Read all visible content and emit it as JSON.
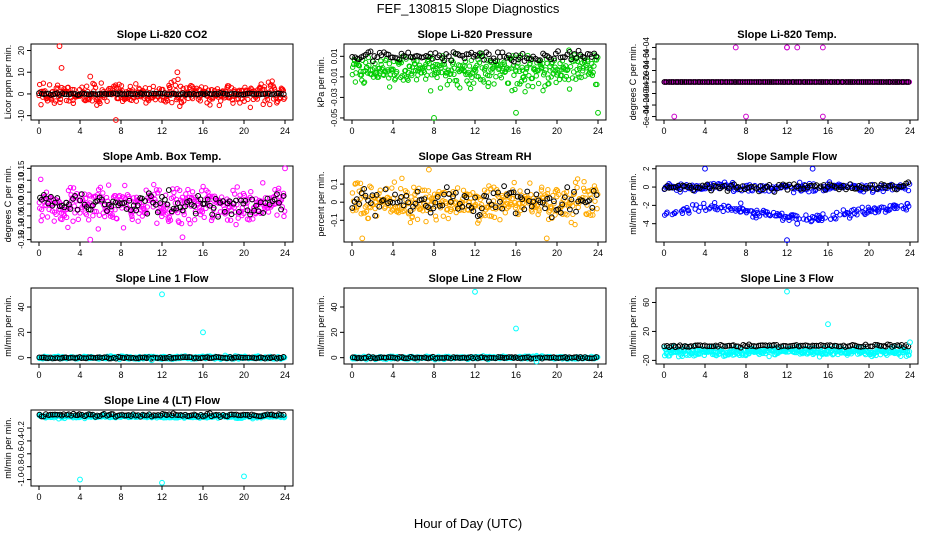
{
  "title": "FEF_130815 Slope Diagnostics",
  "x_title": "Hour of Day (UTC)",
  "chart_data": [
    {
      "type": "scatter",
      "title": "Slope Li-820 CO2",
      "ylabel": "Licor ppm per min.",
      "xlim": [
        0,
        24
      ],
      "xticks": [
        0,
        4,
        8,
        12,
        16,
        20,
        24
      ],
      "ylim": [
        -12,
        23
      ],
      "yticks": [
        -10,
        0,
        10,
        20
      ],
      "ytick_labels": [
        "-10",
        "0",
        "10",
        "20"
      ],
      "colors": {
        "primary": "#ff0000",
        "overlay": "#000000"
      },
      "spread": 4,
      "base_offset": 0,
      "outliers": [
        [
          2,
          22
        ],
        [
          7.5,
          -12
        ],
        [
          13.5,
          10
        ],
        [
          2.2,
          12
        ],
        [
          5,
          8
        ]
      ],
      "overlay_spread": 0.3,
      "overlay_base": 0
    },
    {
      "type": "scatter",
      "title": "Slope Li-820 Pressure",
      "ylabel": "kPa per min.",
      "xlim": [
        0,
        24
      ],
      "xticks": [
        0,
        4,
        8,
        12,
        16,
        20,
        24
      ],
      "ylim": [
        -0.052,
        0.022
      ],
      "yticks": [
        -0.05,
        -0.03,
        -0.01,
        0.01
      ],
      "ytick_labels": [
        "-0.05",
        "-0.03",
        "-0.01",
        "0.01"
      ],
      "colors": {
        "primary": "#00cc00",
        "overlay": "#000000"
      },
      "spread": 0.008,
      "base_offset": 0.0,
      "outliers": [
        [
          8,
          -0.05
        ],
        [
          16,
          -0.045
        ],
        [
          24,
          -0.045
        ]
      ],
      "overlay_spread": 0.004,
      "overlay_base": 0.01
    },
    {
      "type": "scatter",
      "title": "Slope Li-820 Temp.",
      "ylabel": "degrees C per min.",
      "xlim": [
        0,
        24
      ],
      "xticks": [
        0,
        4,
        8,
        12,
        16,
        20,
        24
      ],
      "ylim": [
        -0.00066,
        0.00066
      ],
      "yticks": [
        -0.0006,
        -0.0004,
        -0.0002,
        0,
        0.0002,
        0.0004,
        0.0006
      ],
      "ytick_labels": [
        "-6e-04",
        "-4e-04",
        "-2e-04",
        "0e+00",
        "2e-04",
        "4e-04",
        "6e-04"
      ],
      "colors": {
        "primary": "#cc00cc",
        "overlay": "#000000"
      },
      "spread": 0,
      "base_offset": 0,
      "outliers": [
        [
          7,
          0.0006
        ],
        [
          12,
          0.0006
        ],
        [
          13,
          0.0006
        ],
        [
          1,
          -0.0006
        ],
        [
          8,
          -0.0006
        ],
        [
          15.5,
          -0.0006
        ],
        [
          12,
          0.0006
        ],
        [
          15.5,
          0.0006
        ]
      ],
      "overlay_spread": 0,
      "overlay_base": 0
    },
    {
      "type": "scatter",
      "title": "Slope Amb. Box Temp.",
      "ylabel": "degrees C per min.",
      "xlim": [
        0,
        24
      ],
      "xticks": [
        0,
        4,
        8,
        12,
        16,
        20,
        24
      ],
      "ylim": [
        -0.16,
        0.16
      ],
      "yticks": [
        -0.15,
        -0.1,
        -0.05,
        0,
        0.05,
        0.1,
        0.15
      ],
      "ytick_labels": [
        "-0.15",
        "-0.10",
        "-0.05",
        "0.00",
        "0.05",
        "0.10",
        "0.15"
      ],
      "colors": {
        "primary": "#ff00ff",
        "overlay": "#000000"
      },
      "spread": 0.06,
      "base_offset": 0,
      "outliers": [
        [
          5,
          -0.15
        ],
        [
          14,
          -0.14
        ],
        [
          24,
          0.15
        ]
      ],
      "overlay_spread": 0.04,
      "overlay_base": 0
    },
    {
      "type": "scatter",
      "title": "Slope Gas Stream RH",
      "ylabel": "percent per min.",
      "xlim": [
        0,
        24
      ],
      "xticks": [
        0,
        4,
        8,
        12,
        16,
        20,
        24
      ],
      "ylim": [
        -0.22,
        0.2
      ],
      "yticks": [
        -0.1,
        0,
        0.1
      ],
      "ytick_labels": [
        "-0.1",
        "0",
        "0.1"
      ],
      "colors": {
        "primary": "#ffaa00",
        "overlay": "#000000"
      },
      "spread": 0.08,
      "base_offset": 0,
      "outliers": [
        [
          1,
          -0.2
        ],
        [
          19,
          -0.2
        ],
        [
          7.5,
          0.18
        ]
      ],
      "overlay_spread": 0.06,
      "overlay_base": 0
    },
    {
      "type": "scatter",
      "title": "Slope Sample Flow",
      "ylabel": "ml/min per min.",
      "xlim": [
        0,
        24
      ],
      "xticks": [
        0,
        4,
        8,
        12,
        16,
        20,
        24
      ],
      "ylim": [
        -6,
        2.3
      ],
      "yticks": [
        -4,
        -2,
        0,
        2
      ],
      "ytick_labels": [
        "-4",
        "-2",
        "0",
        "2"
      ],
      "colors": {
        "primary": "#0000ff",
        "overlay": "#000000"
      },
      "spread": 0.5,
      "base_offset": 0,
      "outliers": [
        [
          12,
          -5.8
        ],
        [
          13,
          -4
        ],
        [
          14.5,
          2
        ],
        [
          4,
          2
        ]
      ],
      "overlay_spread": 0.3,
      "overlay_base": 0
    },
    {
      "type": "scatter",
      "title": "Slope Line 1 Flow",
      "ylabel": "ml/min per min.",
      "xlim": [
        0,
        24
      ],
      "xticks": [
        0,
        4,
        8,
        12,
        16,
        20,
        24
      ],
      "ylim": [
        -5,
        55
      ],
      "yticks": [
        0,
        20,
        40
      ],
      "ytick_labels": [
        "0",
        "20",
        "40"
      ],
      "colors": {
        "primary": "#00ffff",
        "overlay": "#000000"
      },
      "spread": 1,
      "base_offset": 0,
      "outliers": [
        [
          12,
          50
        ],
        [
          16,
          20
        ],
        [
          11,
          -2
        ]
      ],
      "overlay_spread": 0.6,
      "overlay_base": 0
    },
    {
      "type": "scatter",
      "title": "Slope Line 2 Flow",
      "ylabel": "ml/min per min.",
      "xlim": [
        0,
        24
      ],
      "xticks": [
        0,
        4,
        8,
        12,
        16,
        20,
        24
      ],
      "ylim": [
        -5,
        55
      ],
      "yticks": [
        0,
        20,
        40
      ],
      "ytick_labels": [
        "0",
        "20",
        "40"
      ],
      "colors": {
        "primary": "#00ffff",
        "overlay": "#000000"
      },
      "spread": 1,
      "base_offset": 0,
      "outliers": [
        [
          12,
          52
        ],
        [
          16,
          23
        ],
        [
          18,
          -3
        ]
      ],
      "overlay_spread": 0.6,
      "overlay_base": 0
    },
    {
      "type": "scatter",
      "title": "Slope Line 3 Flow",
      "ylabel": "ml/min per min.",
      "xlim": [
        0,
        24
      ],
      "xticks": [
        0,
        4,
        8,
        12,
        16,
        20,
        24
      ],
      "ylim": [
        -25,
        80
      ],
      "yticks": [
        -20,
        20,
        60
      ],
      "ytick_labels": [
        "-20",
        "20",
        "60"
      ],
      "colors": {
        "primary": "#00ffff",
        "overlay": "#000000"
      },
      "spread": 5,
      "base_offset": -8,
      "outliers": [
        [
          12,
          75
        ],
        [
          16,
          30
        ],
        [
          24,
          5
        ]
      ],
      "overlay_spread": 1.5,
      "overlay_base": 0
    },
    {
      "type": "scatter",
      "title": "Slope Line 4 (LT) Flow",
      "ylabel": "ml/min per min.",
      "xlim": [
        0,
        24
      ],
      "xticks": [
        0,
        4,
        8,
        12,
        16,
        20,
        24
      ],
      "ylim": [
        -1.1,
        0.08
      ],
      "yticks": [
        -1.0,
        -0.8,
        -0.6,
        -0.4,
        -0.2
      ],
      "ytick_labels": [
        "-1.0",
        "-0.8",
        "-0.6",
        "-0.4",
        "-0.2"
      ],
      "colors": {
        "primary": "#00ffff",
        "overlay": "#000000"
      },
      "spread": 0.025,
      "base_offset": 0,
      "outliers": [
        [
          4,
          -1.0
        ],
        [
          12,
          -1.05
        ],
        [
          20,
          -0.95
        ]
      ],
      "overlay_spread": 0.02,
      "overlay_base": 0
    }
  ]
}
